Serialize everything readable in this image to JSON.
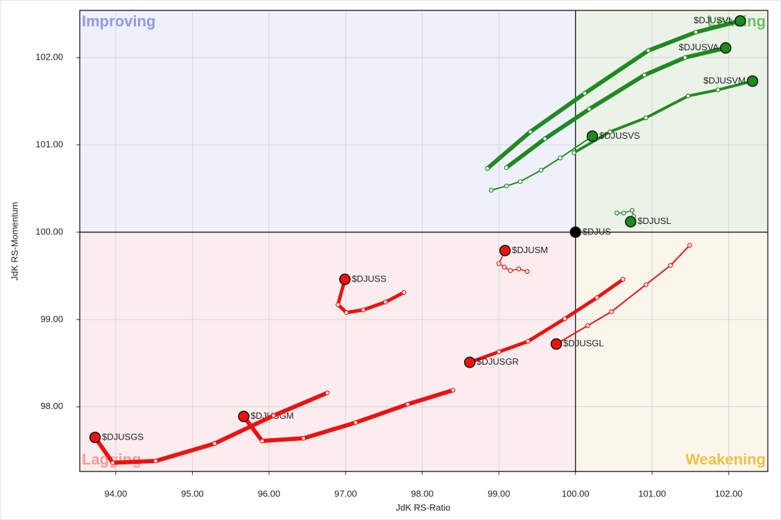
{
  "chart_data": {
    "type": "rrg",
    "x_label": "JdK RS-Ratio",
    "y_label": "JdK RS-Momentum",
    "xlim": [
      93.53,
      102.51
    ],
    "ylim": [
      97.26,
      102.54
    ],
    "xticks": [
      {
        "value": 94,
        "label": "94.00"
      },
      {
        "value": 95,
        "label": "95.00"
      },
      {
        "value": 96,
        "label": "96.00"
      },
      {
        "value": 97,
        "label": "97.00"
      },
      {
        "value": 98,
        "label": "98.00"
      },
      {
        "value": 99,
        "label": "99.00"
      },
      {
        "value": 100,
        "label": "100.00"
      },
      {
        "value": 101,
        "label": "101.00"
      },
      {
        "value": 102,
        "label": "102.00"
      }
    ],
    "yticks": [
      {
        "value": 98,
        "label": "98.00"
      },
      {
        "value": 99,
        "label": "99.00"
      },
      {
        "value": 100,
        "label": "100.00"
      },
      {
        "value": 101,
        "label": "101.00"
      },
      {
        "value": 102,
        "label": "102.00"
      }
    ],
    "grid": true,
    "center": {
      "x": 100,
      "y": 100
    },
    "quadrants": [
      {
        "label": "Improving",
        "color": "#8f9ae8",
        "fill": "#eef0fa"
      },
      {
        "label": "Leading",
        "color": "#6cc068",
        "fill": "#ebf3e8"
      },
      {
        "label": "Weakening",
        "color": "#f0c040",
        "fill": "#faf6ec"
      },
      {
        "label": "Lagging",
        "color": "#f29a9a",
        "fill": "#fbeded"
      }
    ],
    "series": [
      {
        "name": "$DJUSVL",
        "color": "#1f8a1f",
        "line_width": 6,
        "x": [
          98.85,
          99.41,
          100.12,
          100.95,
          101.57,
          102.15
        ],
        "y": [
          100.73,
          101.15,
          101.59,
          102.08,
          102.29,
          102.42
        ]
      },
      {
        "name": "$DJUSVA",
        "color": "#1f8a1f",
        "line_width": 6,
        "x": [
          99.1,
          99.6,
          100.18,
          100.9,
          101.43,
          101.96
        ],
        "y": [
          100.74,
          101.07,
          101.41,
          101.8,
          102.0,
          102.11
        ]
      },
      {
        "name": "$DJUSVM",
        "color": "#1f8a1f",
        "line_width": 4,
        "x": [
          99.98,
          100.45,
          100.92,
          101.47,
          101.86,
          102.31
        ],
        "y": [
          100.91,
          101.15,
          101.31,
          101.56,
          101.63,
          101.73
        ]
      },
      {
        "name": "$DJUSVS",
        "color": "#1f8a1f",
        "line_width": 2,
        "x": [
          98.9,
          99.1,
          99.28,
          99.55,
          99.8,
          100.22
        ],
        "y": [
          100.48,
          100.53,
          100.58,
          100.71,
          100.85,
          101.1
        ]
      },
      {
        "name": "$DJUSL",
        "color": "#1f8a1f",
        "line_width": 1.5,
        "x": [
          100.54,
          100.63,
          100.74,
          100.76,
          100.72
        ],
        "y": [
          100.22,
          100.22,
          100.25,
          100.18,
          100.12
        ]
      },
      {
        "name": "$DJUS",
        "color": "#000000",
        "line_width": 1.5,
        "x": [
          100
        ],
        "y": [
          100
        ]
      },
      {
        "name": "$DJUSM",
        "color": "#ee1111",
        "line_width": 1.5,
        "x": [
          99.37,
          99.26,
          99.15,
          99.07,
          99.0,
          99.08
        ],
        "y": [
          99.55,
          99.58,
          99.56,
          99.6,
          99.64,
          99.79
        ]
      },
      {
        "name": "$DJUSS",
        "color": "#ee1111",
        "line_width": 5,
        "x": [
          97.76,
          97.52,
          97.23,
          97.01,
          96.9,
          96.99
        ],
        "y": [
          99.31,
          99.2,
          99.11,
          99.08,
          99.17,
          99.46
        ]
      },
      {
        "name": "$DJUSGL",
        "color": "#ee1111",
        "line_width": 2,
        "x": [
          101.49,
          101.24,
          100.92,
          100.47,
          100.16,
          99.75
        ],
        "y": [
          99.85,
          99.62,
          99.4,
          99.09,
          98.93,
          98.72
        ]
      },
      {
        "name": "$DJUSGR",
        "color": "#ee1111",
        "line_width": 5,
        "x": [
          100.62,
          100.28,
          99.86,
          99.38,
          99.0,
          98.62
        ],
        "y": [
          99.46,
          99.25,
          99.01,
          98.75,
          98.63,
          98.51
        ]
      },
      {
        "name": "$DJUSGM",
        "color": "#ee1111",
        "line_width": 6,
        "x": [
          98.4,
          97.81,
          97.13,
          96.45,
          95.91,
          95.67
        ],
        "y": [
          98.19,
          98.03,
          97.82,
          97.64,
          97.61,
          97.89
        ]
      },
      {
        "name": "$DJUSGS",
        "color": "#ee1111",
        "line_width": 6,
        "x": [
          96.76,
          96.06,
          95.29,
          94.52,
          93.96,
          93.73
        ],
        "y": [
          98.16,
          97.9,
          97.58,
          97.38,
          97.36,
          97.65
        ]
      }
    ]
  }
}
